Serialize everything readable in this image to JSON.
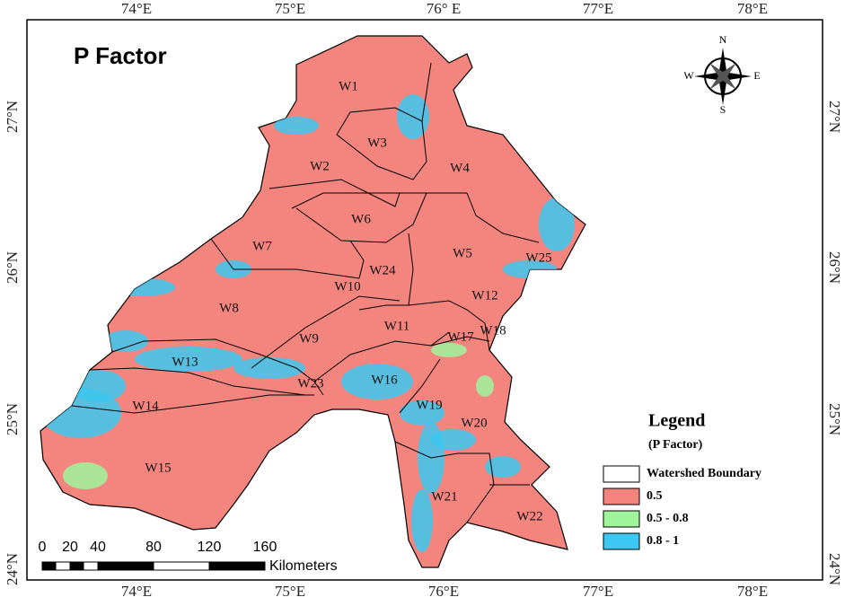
{
  "title": "P Factor",
  "longitude_labels_top": [
    "74°E",
    "75°E",
    "76° E",
    "77°E",
    "78°E"
  ],
  "longitude_labels_bottom": [
    "74°E",
    "75°E",
    "76°E",
    "77°E",
    "78°E"
  ],
  "latitude_labels_left": [
    "27°N",
    "26°N",
    "25°N",
    "24°N"
  ],
  "latitude_labels_right": [
    "27°N",
    "26°N",
    "25°N",
    "24°N"
  ],
  "compass": {
    "north": "N",
    "south": "S",
    "west": "W",
    "east": "E"
  },
  "watersheds": [
    "W1",
    "W2",
    "W3",
    "W4",
    "W5",
    "W6",
    "W7",
    "W8",
    "W9",
    "W10",
    "W11",
    "W12",
    "W13",
    "W14",
    "W15",
    "W16",
    "W17",
    "W18",
    "W19",
    "W20",
    "W21",
    "W22",
    "W23",
    "W24",
    "W25"
  ],
  "legend": {
    "title": "Legend",
    "subtitle": "(P Factor)",
    "items": [
      {
        "label": "Watershed Boundary",
        "color": "#ffffff"
      },
      {
        "label": "0.5",
        "color": "#f4857e"
      },
      {
        "label": "0.5 - 0.8",
        "color": "#9ef59a"
      },
      {
        "label": "0.8 - 1",
        "color": "#3cc8f0"
      }
    ]
  },
  "scale_bar": {
    "ticks": [
      0,
      20,
      40,
      80,
      120,
      160
    ],
    "unit": "Kilometers"
  }
}
